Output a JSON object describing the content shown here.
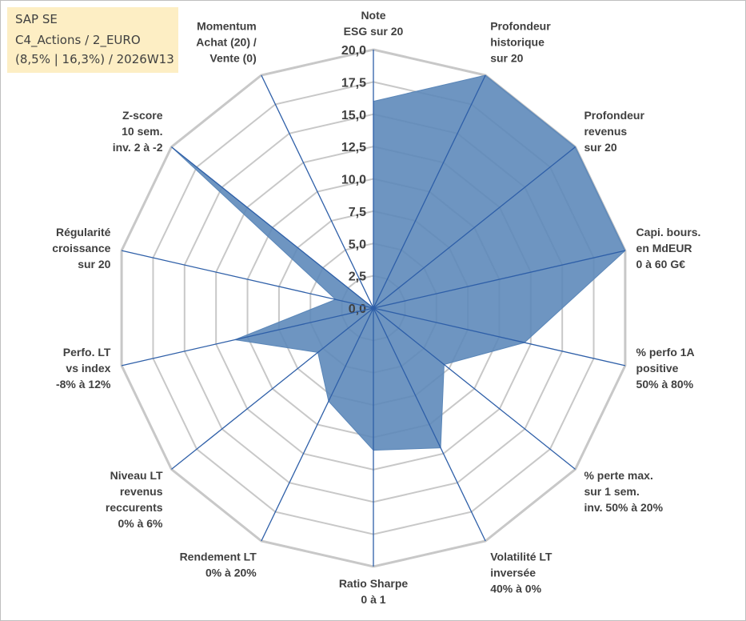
{
  "info": {
    "line1": "SAP SE",
    "line2": "C4_Actions / 2_EURO",
    "line3": "(8,5% | 16,3%) / 2026W13"
  },
  "colors": {
    "fill": "#5a86b8",
    "line": "#2e5fa8",
    "grid": "#c8c8c8",
    "text": "#404040",
    "box": "#fdeec4"
  },
  "chart_data": {
    "type": "radar",
    "title": "",
    "rmin": 0,
    "rmax": 20,
    "step": 2.5,
    "tick_labels": [
      "0,0",
      "2,5",
      "5,0",
      "7,5",
      "10,0",
      "12,5",
      "15,0",
      "17,5",
      "20,0"
    ],
    "axes": [
      [
        "Note",
        "ESG sur 20"
      ],
      [
        "Profondeur",
        "historique",
        "sur 20"
      ],
      [
        "Profondeur",
        "revenus",
        "sur 20"
      ],
      [
        "Capi. bours.",
        "en MdEUR",
        "0 à 60 G€"
      ],
      [
        "% perfo 1A",
        "positive",
        "50% à 80%"
      ],
      [
        "% perte max.",
        "sur 1 sem.",
        "inv. 50% à 20%"
      ],
      [
        "Volatilité LT",
        "inversée",
        "40% à 0%"
      ],
      [
        "Ratio Sharpe",
        "0 à 1"
      ],
      [
        "Rendement LT",
        "0% à 20%"
      ],
      [
        "Niveau LT",
        "revenus",
        "reccurents",
        "0% à 6%"
      ],
      [
        "Perfo. LT",
        "vs index",
        "-8% à 12%"
      ],
      [
        "Régularité",
        "croissance",
        "sur 20"
      ],
      [
        "Z-score",
        "10 sem.",
        "inv. 2 à -2"
      ],
      [
        "Momentum",
        "Achat (20) /",
        "Vente (0)"
      ]
    ],
    "series": [
      {
        "name": "SAP SE",
        "values": [
          16.0,
          20.0,
          20.0,
          20.0,
          12.0,
          7.0,
          12.0,
          11.0,
          8.0,
          5.5,
          11.0,
          3.0,
          20.0,
          0.0
        ]
      }
    ]
  }
}
